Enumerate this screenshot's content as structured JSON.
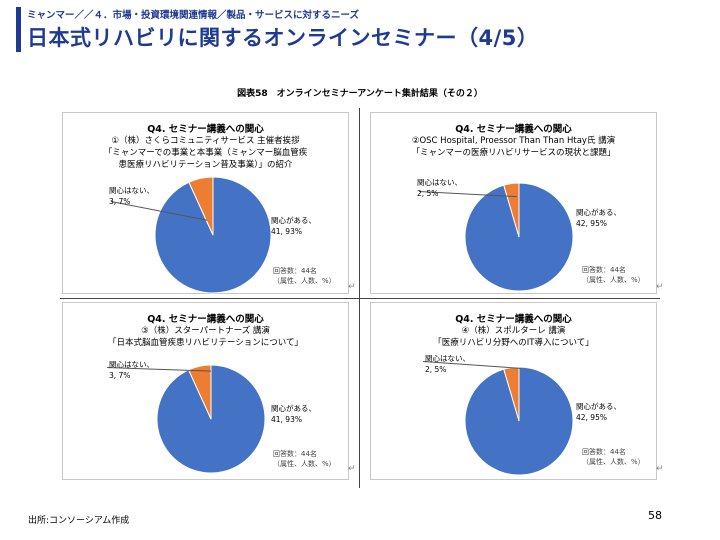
{
  "header": {
    "breadcrumb": "ミャンマー／／４．市場・投資環境関連情報／製品・サービスに対するニーズ",
    "title": "日本式リハビリに関するオンラインセミナー（4/5）",
    "accent_color": "#1f3a93"
  },
  "figure_caption": "図表58　オンラインセミナーアンケート集計結果（その２）",
  "colors": {
    "interested": "#4472c4",
    "not_interested": "#ed7d31"
  },
  "panels": [
    {
      "heading": "Q4. セミナー講義への関心",
      "lines": [
        "①（株）さくらコミュニティサービス 主催者挨拶",
        "「ミャンマーでの事業と本事業（ミャンマー脳血管疾",
        "患医療リハビリテーション普及事業）」の紹介"
      ],
      "label_no": "関心はない、",
      "value_no": "3, 7%",
      "label_yes": "関心がある、",
      "value_yes": "41, 93%",
      "note_count": "回答数：44名",
      "note_unit": "（属性、人数、%）"
    },
    {
      "heading": "Q4. セミナー講義への関心",
      "lines": [
        "②OSC Hospital, Proessor Than Than Htay氏 講演",
        "「ミャンマーの医療リハビリサービスの現状と課題」"
      ],
      "label_no": "関心はない、",
      "value_no": "2, 5%",
      "label_yes": "関心がある、",
      "value_yes": "42, 95%",
      "note_count": "回答数：44名",
      "note_unit": "（属性、人数、%）"
    },
    {
      "heading": "Q4. セミナー講義への関心",
      "lines": [
        "③（株）スターパートナーズ 講演",
        "「日本式脳血管疾患リハビリテーションについて」"
      ],
      "label_no": "関心はない、",
      "value_no": "3, 7%",
      "label_yes": "関心がある、",
      "value_yes": "41, 93%",
      "note_count": "回答数：44名",
      "note_unit": "（属性、人数、%）"
    },
    {
      "heading": "Q4. セミナー講義への関心",
      "lines": [
        "④（株）スポルターレ 講演",
        "「医療リハビリ分野へのIT導入について」"
      ],
      "label_no": "関心はない、",
      "value_no": "2, 5%",
      "label_yes": "関心がある、",
      "value_yes": "42, 95%",
      "note_count": "回答数：44名",
      "note_unit": "（属性、人数、%）"
    }
  ],
  "chart_data": [
    {
      "type": "pie",
      "categories": [
        "関心がある",
        "関心はない"
      ],
      "values": [
        41,
        3
      ],
      "percents": [
        93,
        7
      ]
    },
    {
      "type": "pie",
      "categories": [
        "関心がある",
        "関心はない"
      ],
      "values": [
        42,
        2
      ],
      "percents": [
        95,
        5
      ]
    },
    {
      "type": "pie",
      "categories": [
        "関心がある",
        "関心はない"
      ],
      "values": [
        41,
        3
      ],
      "percents": [
        93,
        7
      ]
    },
    {
      "type": "pie",
      "categories": [
        "関心がある",
        "関心はない"
      ],
      "values": [
        42,
        2
      ],
      "percents": [
        95,
        5
      ]
    }
  ],
  "footer": {
    "source": "出所:コンソーシアム作成",
    "page_number": "58"
  }
}
